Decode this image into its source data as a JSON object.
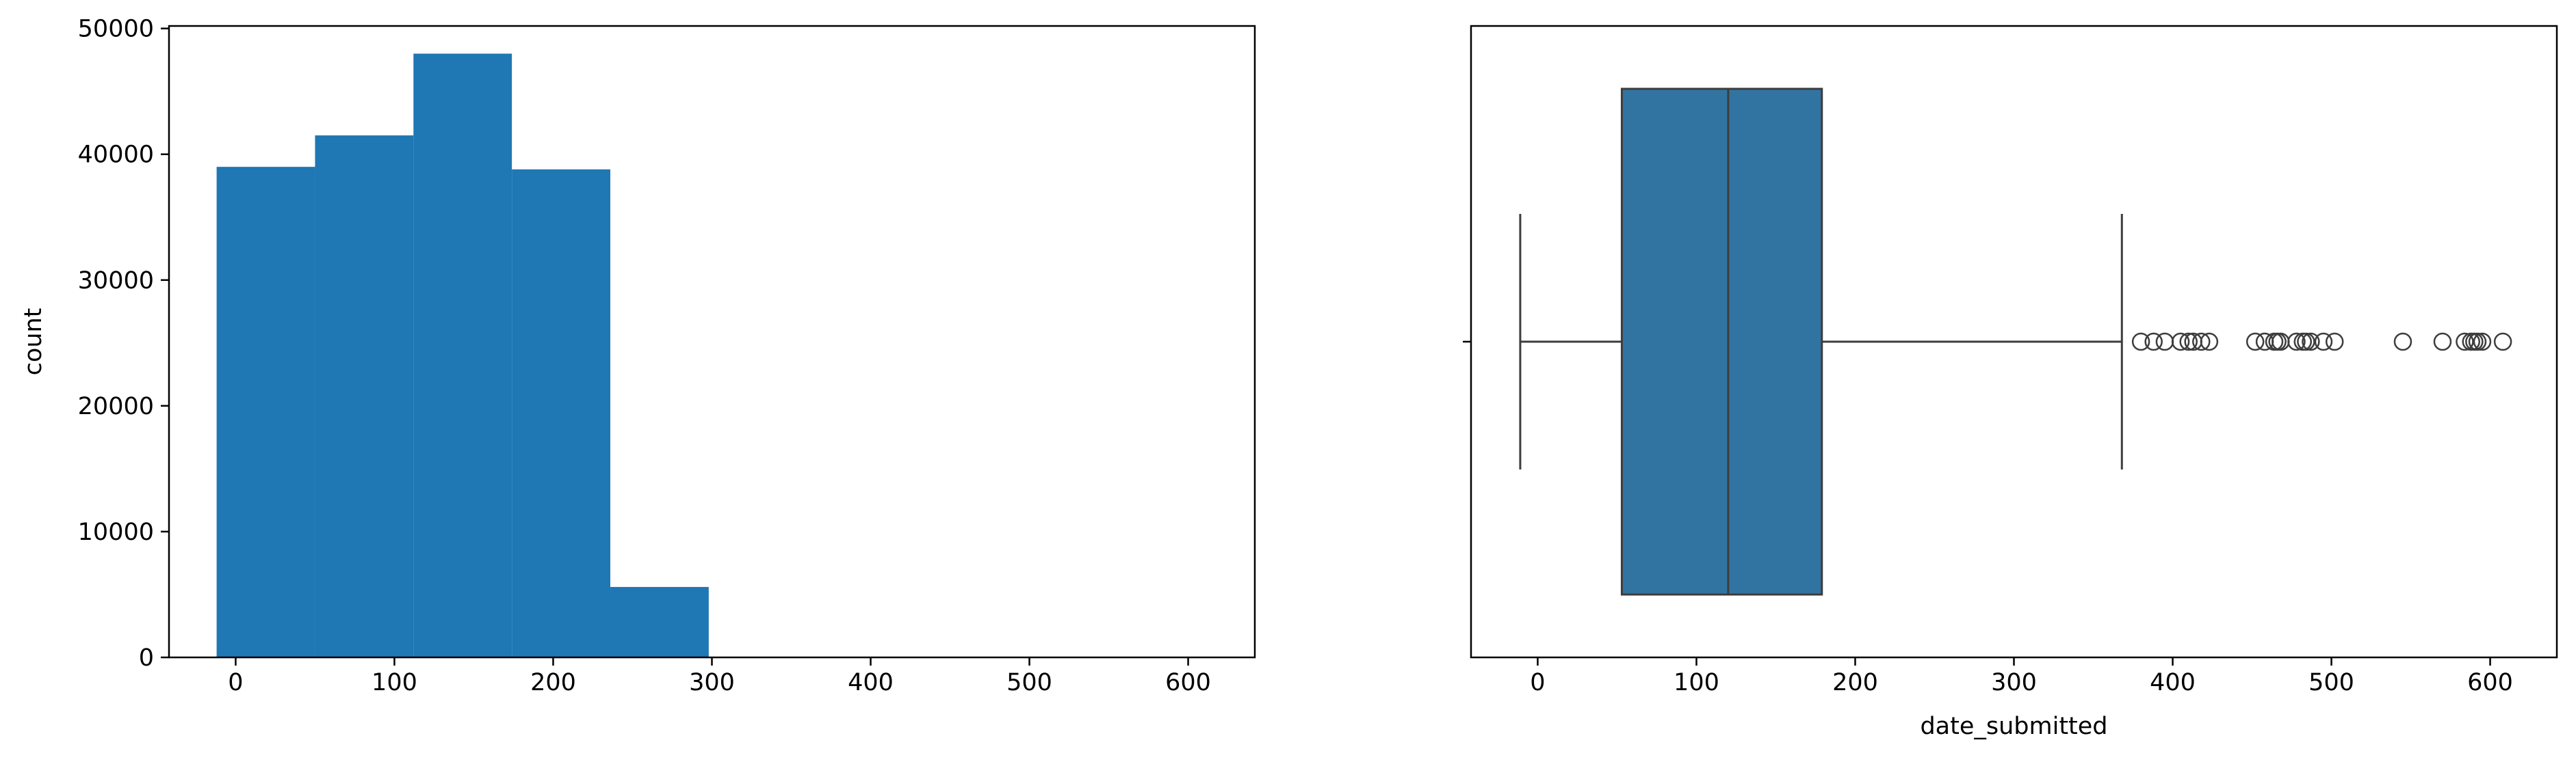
{
  "chart_data": [
    {
      "type": "bar",
      "subtype": "histogram",
      "xlabel": "",
      "ylabel": "count",
      "xlim": [
        -42,
        642
      ],
      "ylim": [
        0,
        50200
      ],
      "xticks": [
        0,
        100,
        200,
        300,
        400,
        500,
        600
      ],
      "yticks": [
        0,
        10000,
        20000,
        30000,
        40000,
        50000
      ],
      "bins": [
        {
          "x0": -12,
          "x1": 50,
          "count": 39000
        },
        {
          "x0": 50,
          "x1": 112,
          "count": 41500
        },
        {
          "x0": 112,
          "x1": 174,
          "count": 48000
        },
        {
          "x0": 174,
          "x1": 236,
          "count": 38800
        },
        {
          "x0": 236,
          "x1": 298,
          "count": 5600
        }
      ],
      "color": "#1f77b4",
      "grid": false
    },
    {
      "type": "boxplot",
      "xlabel": "date_submitted",
      "ylabel": "",
      "xlim": [
        -42,
        642
      ],
      "xticks": [
        0,
        100,
        200,
        300,
        400,
        500,
        600
      ],
      "box": {
        "whisker_low": -11,
        "q1": 53,
        "median": 120,
        "q3": 179,
        "whisker_high": 368
      },
      "outliers": [
        380,
        388,
        395,
        405,
        410,
        413,
        418,
        423,
        452,
        458,
        464,
        466,
        468,
        478,
        482,
        484,
        487,
        495,
        502,
        545,
        570,
        584,
        588,
        590,
        592,
        595,
        608
      ],
      "color": "#3274a1",
      "grid": false
    }
  ]
}
